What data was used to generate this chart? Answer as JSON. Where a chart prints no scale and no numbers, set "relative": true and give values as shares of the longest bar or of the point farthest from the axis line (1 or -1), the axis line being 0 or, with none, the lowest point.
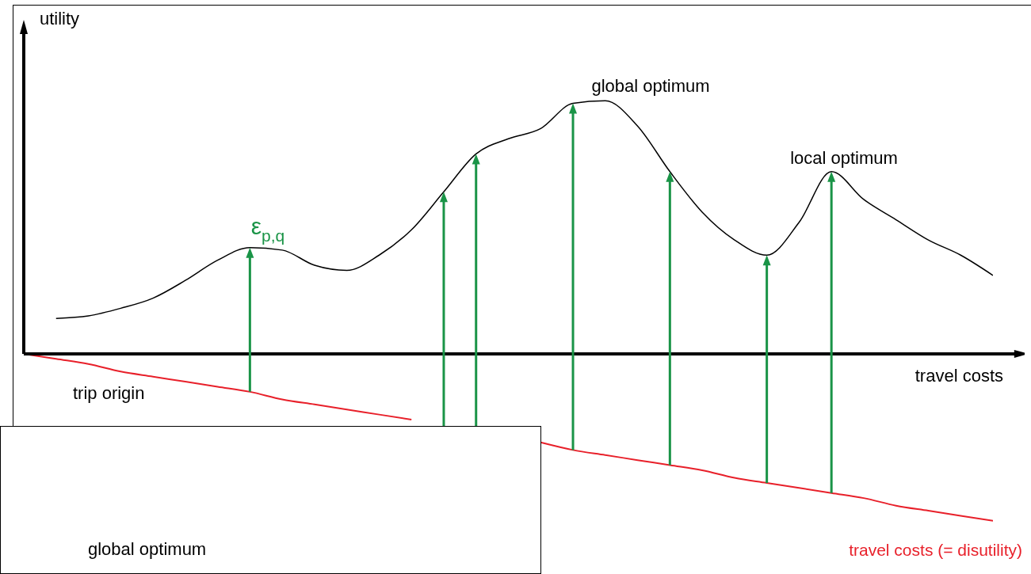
{
  "chart_data": {
    "type": "line",
    "relative": true,
    "xlabel": "travel costs",
    "ylabel": "utility",
    "categories": [
      null,
      null,
      null,
      null,
      null,
      null,
      null,
      null,
      null,
      null,
      null,
      null,
      null,
      null,
      null,
      null,
      null,
      null,
      null,
      null,
      null,
      null,
      null,
      null,
      null,
      null,
      null,
      null,
      null,
      null,
      null
    ],
    "series": [
      {
        "color": "#000000",
        "values": [
          null,
          0.14,
          0.15,
          0.18,
          0.22,
          0.29,
          0.37,
          0.42,
          0.41,
          0.35,
          0.33,
          0.39,
          0.49,
          0.64,
          0.79,
          0.85,
          0.89,
          0.99,
          1,
          0.9,
          0.72,
          0.56,
          0.45,
          0.39,
          0.52,
          0.72,
          0.61,
          0.53,
          0.45,
          0.39,
          0.31
        ]
      },
      {
        "name": "travel costs (= disutility)",
        "color": "#e8202a",
        "values": [
          0,
          -0.02,
          -0.04,
          -0.07,
          -0.09,
          -0.11,
          -0.13,
          -0.15,
          -0.18,
          -0.2,
          -0.22,
          -0.24,
          -0.26,
          null,
          null,
          null,
          -0.35,
          -0.38,
          -0.4,
          -0.42,
          -0.44,
          -0.46,
          -0.49,
          -0.51,
          -0.53,
          -0.55,
          -0.57,
          -0.6,
          -0.62,
          -0.64,
          -0.66
        ]
      }
    ],
    "annotations": [
      "global optimum",
      "local optimum",
      "ε$_{p,q}$",
      "trip origin",
      "global optimum"
    ],
    "legend": false,
    "grid": false,
    "marker": "none",
    "line_style": "solid"
  }
}
